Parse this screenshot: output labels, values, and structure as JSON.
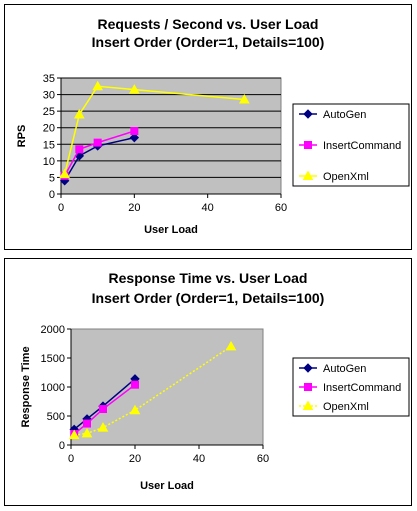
{
  "chart_data": [
    {
      "type": "line",
      "title": "Requests / Second  vs.  User Load",
      "subtitle": "Insert Order (Order=1, Details=100)",
      "xlabel": "User Load",
      "ylabel": "RPS",
      "xlim": [
        0,
        60
      ],
      "ylim": [
        0,
        35
      ],
      "x_ticks": [
        0,
        20,
        40,
        60
      ],
      "y_ticks": [
        0,
        5,
        10,
        15,
        20,
        25,
        30,
        35
      ],
      "grid": true,
      "legend": "right",
      "series": [
        {
          "name": "AutoGen",
          "color": "#000080",
          "marker": "diamond",
          "dashed": false,
          "x": [
            1,
            5,
            10,
            20
          ],
          "y": [
            4,
            11.5,
            14.5,
            17
          ]
        },
        {
          "name": "InsertCommand",
          "color": "#ff00ff",
          "marker": "square",
          "dashed": false,
          "x": [
            1,
            5,
            10,
            20
          ],
          "y": [
            5.5,
            13.5,
            15.5,
            19
          ]
        },
        {
          "name": "OpenXml",
          "color": "#ffff00",
          "marker": "triangle",
          "dashed": false,
          "x": [
            1,
            5,
            10,
            20,
            50
          ],
          "y": [
            6,
            24,
            32.5,
            31.5,
            28.5
          ]
        }
      ]
    },
    {
      "type": "line",
      "title": "Response Time  vs.  User Load",
      "subtitle": "Insert Order (Order=1, Details=100)",
      "xlabel": "User Load",
      "ylabel": "Response Time",
      "xlim": [
        0,
        60
      ],
      "ylim": [
        0,
        2000
      ],
      "x_ticks": [
        0,
        20,
        40,
        60
      ],
      "y_ticks": [
        0,
        500,
        1000,
        1500,
        2000
      ],
      "grid": false,
      "legend": "right",
      "series": [
        {
          "name": "AutoGen",
          "color": "#000080",
          "marker": "diamond",
          "dashed": false,
          "x": [
            1,
            5,
            10,
            20
          ],
          "y": [
            270,
            450,
            670,
            1140
          ]
        },
        {
          "name": "InsertCommand",
          "color": "#ff00ff",
          "marker": "square",
          "dashed": false,
          "x": [
            1,
            5,
            10,
            20
          ],
          "y": [
            190,
            370,
            620,
            1040
          ]
        },
        {
          "name": "OpenXml",
          "color": "#ffff00",
          "marker": "triangle",
          "dashed": true,
          "x": [
            1,
            5,
            10,
            20,
            50
          ],
          "y": [
            170,
            200,
            300,
            600,
            1700
          ]
        }
      ]
    }
  ]
}
